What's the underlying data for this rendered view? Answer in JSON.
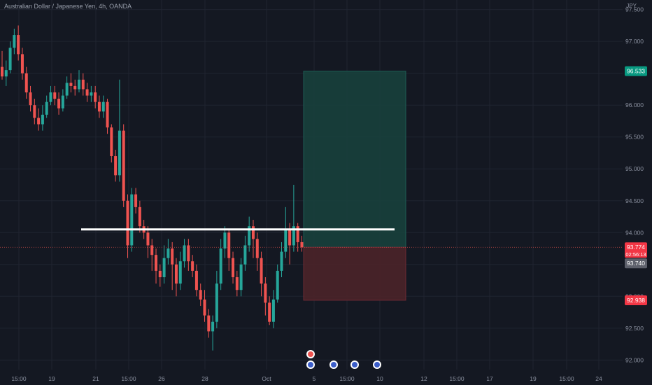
{
  "chart_data": {
    "type": "candlestick",
    "title": "Australian Dollar / Japanese Yen, 4h, OANDA",
    "unit": "JPY",
    "ylim": [
      91.85,
      97.65
    ],
    "y_ticks": [
      "97.500",
      "97.000",
      "96.500",
      "96.000",
      "95.500",
      "95.000",
      "94.500",
      "94.000",
      "93.500",
      "93.000",
      "92.500",
      "92.000"
    ],
    "y_tick_values": [
      97.5,
      97.0,
      96.5,
      96.0,
      95.5,
      95.0,
      94.5,
      94.0,
      93.5,
      93.0,
      92.5,
      92.0
    ],
    "x_ticks": [
      "15:00",
      "19",
      "21",
      "15:00",
      "26",
      "28",
      "Oct",
      "5",
      "15:00",
      "10",
      "12",
      "15:00",
      "17",
      "19",
      "15:00",
      "24"
    ],
    "candles": [
      [
        96.6,
        96.45,
        96.85,
        96.4
      ],
      [
        96.45,
        96.55,
        96.7,
        96.3
      ],
      [
        96.55,
        96.9,
        97.0,
        96.5
      ],
      [
        96.9,
        97.1,
        97.2,
        96.8
      ],
      [
        97.1,
        96.8,
        97.25,
        96.7
      ],
      [
        96.8,
        96.5,
        96.9,
        96.4
      ],
      [
        96.5,
        96.2,
        96.6,
        96.1
      ],
      [
        96.2,
        96.0,
        96.3,
        95.9
      ],
      [
        96.0,
        95.8,
        96.1,
        95.7
      ],
      [
        95.8,
        95.7,
        95.95,
        95.6
      ],
      [
        95.7,
        95.85,
        96.0,
        95.6
      ],
      [
        95.85,
        96.05,
        96.15,
        95.8
      ],
      [
        96.05,
        96.2,
        96.3,
        96.0
      ],
      [
        96.2,
        96.1,
        96.3,
        96.0
      ],
      [
        96.1,
        95.95,
        96.2,
        95.85
      ],
      [
        95.95,
        96.15,
        96.25,
        95.9
      ],
      [
        96.15,
        96.35,
        96.45,
        96.1
      ],
      [
        96.35,
        96.3,
        96.5,
        96.2
      ],
      [
        96.3,
        96.25,
        96.4,
        96.15
      ],
      [
        96.25,
        96.4,
        96.55,
        96.2
      ],
      [
        96.4,
        96.25,
        96.5,
        96.15
      ],
      [
        96.25,
        96.15,
        96.35,
        96.05
      ],
      [
        96.15,
        96.2,
        96.3,
        96.05
      ],
      [
        96.2,
        96.05,
        96.3,
        95.95
      ],
      [
        96.05,
        95.9,
        96.15,
        95.8
      ],
      [
        95.9,
        96.05,
        96.15,
        95.8
      ],
      [
        96.05,
        95.65,
        96.1,
        95.55
      ],
      [
        95.65,
        95.2,
        95.7,
        95.1
      ],
      [
        95.2,
        94.9,
        95.3,
        94.8
      ],
      [
        94.9,
        95.6,
        96.4,
        94.8
      ],
      [
        95.6,
        94.5,
        95.7,
        94.4
      ],
      [
        94.5,
        93.8,
        94.6,
        93.6
      ],
      [
        93.8,
        94.6,
        94.7,
        93.7
      ],
      [
        94.6,
        94.4,
        94.7,
        94.3
      ],
      [
        94.4,
        94.1,
        94.5,
        94.0
      ],
      [
        94.1,
        94.0,
        94.2,
        93.9
      ],
      [
        94.0,
        93.8,
        94.1,
        93.6
      ],
      [
        93.8,
        93.65,
        93.9,
        93.4
      ],
      [
        93.65,
        93.4,
        93.75,
        93.2
      ],
      [
        93.4,
        93.3,
        93.5,
        93.15
      ],
      [
        93.3,
        93.6,
        93.8,
        93.2
      ],
      [
        93.6,
        93.75,
        93.9,
        93.5
      ],
      [
        93.75,
        93.5,
        93.85,
        93.1
      ],
      [
        93.5,
        93.2,
        93.6,
        93.0
      ],
      [
        93.2,
        93.55,
        93.7,
        93.1
      ],
      [
        93.55,
        93.8,
        93.9,
        93.45
      ],
      [
        93.8,
        93.55,
        93.9,
        93.4
      ],
      [
        93.55,
        93.4,
        93.65,
        93.3
      ],
      [
        93.4,
        93.1,
        93.5,
        93.0
      ],
      [
        93.1,
        92.95,
        93.2,
        92.85
      ],
      [
        92.95,
        92.7,
        93.1,
        92.6
      ],
      [
        92.7,
        92.45,
        92.8,
        92.35
      ],
      [
        92.45,
        92.6,
        92.7,
        92.15
      ],
      [
        92.6,
        93.2,
        93.4,
        92.5
      ],
      [
        93.2,
        93.75,
        93.9,
        93.1
      ],
      [
        93.75,
        94.0,
        94.1,
        93.6
      ],
      [
        94.0,
        93.6,
        94.05,
        93.4
      ],
      [
        93.6,
        93.3,
        93.7,
        93.2
      ],
      [
        93.3,
        93.1,
        93.4,
        93.0
      ],
      [
        93.1,
        93.5,
        93.6,
        93.0
      ],
      [
        93.5,
        93.8,
        93.95,
        93.4
      ],
      [
        93.8,
        94.1,
        94.25,
        93.7
      ],
      [
        94.1,
        93.9,
        94.2,
        93.6
      ],
      [
        93.9,
        93.6,
        94.0,
        93.4
      ],
      [
        93.6,
        93.2,
        93.7,
        93.0
      ],
      [
        93.2,
        92.9,
        93.3,
        92.7
      ],
      [
        92.9,
        92.6,
        93.0,
        92.55
      ],
      [
        92.6,
        92.95,
        93.1,
        92.5
      ],
      [
        92.95,
        93.4,
        93.5,
        92.9
      ],
      [
        93.4,
        93.7,
        93.85,
        93.3
      ],
      [
        93.7,
        94.05,
        94.4,
        93.6
      ],
      [
        94.05,
        93.8,
        94.15,
        93.5
      ],
      [
        93.8,
        94.1,
        94.75,
        93.7
      ],
      [
        94.1,
        93.85,
        94.15,
        93.7
      ],
      [
        93.85,
        93.77,
        93.95,
        93.7
      ]
    ],
    "horizontal_level": 94.05,
    "position": {
      "entry": 93.77,
      "target": 96.533,
      "stop": 92.938
    },
    "price_labels": {
      "target": "96.533",
      "current": "93.774",
      "countdown": "02:56:13",
      "prev": "93.740",
      "stop": "92.938"
    },
    "colors": {
      "up": "#26a69a",
      "down": "#ef5350",
      "background": "#141822",
      "grid": "#1f2430",
      "level": "#ffffff",
      "target_zone": "#17403c",
      "stop_zone": "#4a2329"
    },
    "grid": true
  }
}
